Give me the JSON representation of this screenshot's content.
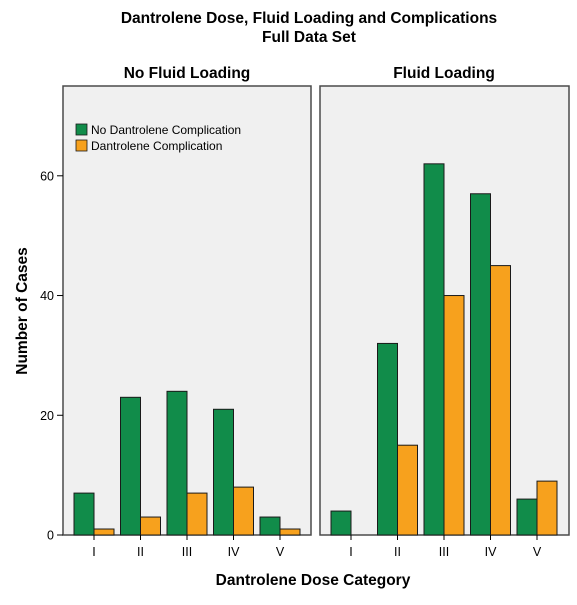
{
  "chart_data": {
    "type": "bar",
    "title": "Dantrolene Dose, Fluid Loading and Complications",
    "subtitle": "Full Data Set",
    "xlabel": "Dantrolene Dose Category",
    "ylabel": "Number of Cases",
    "ylim": [
      0,
      75
    ],
    "yticks": [
      0,
      20,
      40,
      60
    ],
    "categories": [
      "I",
      "II",
      "III",
      "IV",
      "V"
    ],
    "grid": false,
    "legend_position": "top-left",
    "panels": [
      {
        "title": "No Fluid Loading",
        "series": [
          {
            "name": "No Dantrolene Complication",
            "values": [
              7,
              23,
              24,
              21,
              3
            ]
          },
          {
            "name": "Dantrolene Complication",
            "values": [
              1,
              3,
              7,
              8,
              1
            ]
          }
        ]
      },
      {
        "title": "Fluid Loading",
        "series": [
          {
            "name": "No Dantrolene Complication",
            "values": [
              4,
              32,
              62,
              57,
              6
            ]
          },
          {
            "name": "Dantrolene Complication",
            "values": [
              0,
              15,
              40,
              45,
              9
            ]
          }
        ]
      }
    ],
    "legend": [
      "No Dantrolene Complication",
      "Dantrolene Complication"
    ],
    "colors": {
      "No Dantrolene Complication": "#118c4a",
      "Dantrolene Complication": "#f7a11d",
      "panel_bg": "#f0f0f0",
      "panel_border": "#4a4a4a"
    }
  }
}
